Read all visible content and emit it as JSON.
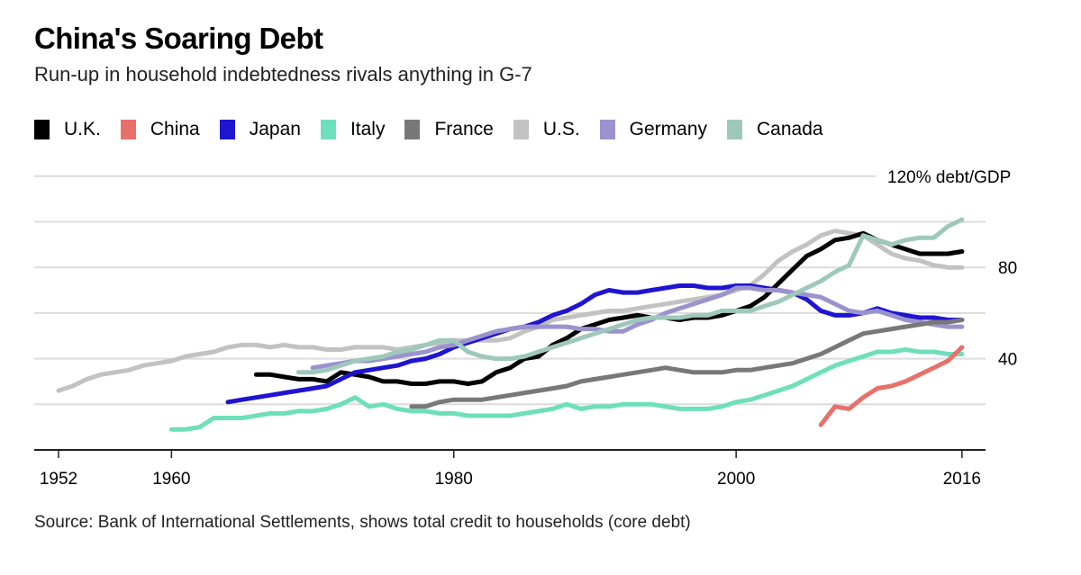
{
  "header": {
    "title": "China's Soaring Debt",
    "subtitle": "Run-up in household indebtedness rivals anything in G-7"
  },
  "footer": {
    "source": "Source: Bank of International Settlements, shows total credit to households (core debt)"
  },
  "chart_data": {
    "type": "line",
    "title": "China's Soaring Debt",
    "subtitle": "Run-up in household indebtedness rivals anything in G-7",
    "xlabel": "",
    "ylabel": "% debt/GDP",
    "xlim": [
      1952,
      2017
    ],
    "ylim": [
      0,
      120
    ],
    "x_ticks": [
      1952,
      1960,
      1980,
      2000,
      2016
    ],
    "y_ticks": [
      {
        "value": 120,
        "label": "120% debt/GDP"
      },
      {
        "value": 100,
        "label": ""
      },
      {
        "value": 80,
        "label": "80"
      },
      {
        "value": 60,
        "label": ""
      },
      {
        "value": 40,
        "label": "40"
      },
      {
        "value": 20,
        "label": ""
      }
    ],
    "grid": true,
    "legend_position": "top-left",
    "series": [
      {
        "name": "U.S.",
        "color": "#c2c2c2",
        "x": [
          1952,
          1953,
          1954,
          1955,
          1956,
          1957,
          1958,
          1959,
          1960,
          1961,
          1962,
          1963,
          1964,
          1965,
          1966,
          1967,
          1968,
          1969,
          1970,
          1971,
          1972,
          1973,
          1974,
          1975,
          1976,
          1977,
          1978,
          1979,
          1980,
          1981,
          1982,
          1983,
          1984,
          1985,
          1986,
          1987,
          1988,
          1989,
          1990,
          1991,
          1992,
          1993,
          1994,
          1995,
          1996,
          1997,
          1998,
          1999,
          2000,
          2001,
          2002,
          2003,
          2004,
          2005,
          2006,
          2007,
          2008,
          2009,
          2010,
          2011,
          2012,
          2013,
          2014,
          2015,
          2016
        ],
        "y": [
          26,
          28,
          31,
          33,
          34,
          35,
          37,
          38,
          39,
          41,
          42,
          43,
          45,
          46,
          46,
          45,
          46,
          45,
          45,
          44,
          44,
          45,
          45,
          45,
          44,
          45,
          46,
          47,
          48,
          48,
          48,
          48,
          49,
          52,
          54,
          57,
          58,
          59,
          60,
          61,
          61,
          62,
          63,
          64,
          65,
          66,
          67,
          68,
          70,
          72,
          77,
          83,
          87,
          90,
          94,
          96,
          95,
          94,
          90,
          86,
          84,
          83,
          81,
          80,
          80
        ]
      },
      {
        "name": "U.K.",
        "color": "#000000",
        "x": [
          1966,
          1967,
          1968,
          1969,
          1970,
          1971,
          1972,
          1973,
          1974,
          1975,
          1976,
          1977,
          1978,
          1979,
          1980,
          1981,
          1982,
          1983,
          1984,
          1985,
          1986,
          1987,
          1988,
          1989,
          1990,
          1991,
          1992,
          1993,
          1994,
          1995,
          1996,
          1997,
          1998,
          1999,
          2000,
          2001,
          2002,
          2003,
          2004,
          2005,
          2006,
          2007,
          2008,
          2009,
          2010,
          2011,
          2012,
          2013,
          2014,
          2015,
          2016
        ],
        "y": [
          33,
          33,
          32,
          31,
          31,
          30,
          34,
          33,
          32,
          30,
          30,
          29,
          29,
          30,
          30,
          29,
          30,
          34,
          36,
          40,
          41,
          46,
          49,
          53,
          55,
          57,
          58,
          59,
          58,
          58,
          57,
          58,
          58,
          59,
          61,
          63,
          67,
          73,
          79,
          85,
          88,
          92,
          93,
          95,
          92,
          90,
          88,
          86,
          86,
          86,
          87
        ]
      },
      {
        "name": "Japan",
        "color": "#1f14cf",
        "x": [
          1964,
          1965,
          1966,
          1967,
          1968,
          1969,
          1970,
          1971,
          1972,
          1973,
          1974,
          1975,
          1976,
          1977,
          1978,
          1979,
          1980,
          1981,
          1982,
          1983,
          1984,
          1985,
          1986,
          1987,
          1988,
          1989,
          1990,
          1991,
          1992,
          1993,
          1994,
          1995,
          1996,
          1997,
          1998,
          1999,
          2000,
          2001,
          2002,
          2003,
          2004,
          2005,
          2006,
          2007,
          2008,
          2009,
          2010,
          2011,
          2012,
          2013,
          2014,
          2015,
          2016
        ],
        "y": [
          21,
          22,
          23,
          24,
          25,
          26,
          27,
          28,
          31,
          34,
          35,
          36,
          37,
          39,
          40,
          42,
          45,
          47,
          49,
          51,
          53,
          54,
          56,
          59,
          61,
          64,
          68,
          70,
          69,
          69,
          70,
          71,
          72,
          72,
          71,
          71,
          72,
          72,
          71,
          70,
          69,
          66,
          61,
          59,
          59,
          60,
          62,
          60,
          59,
          58,
          58,
          57,
          57
        ]
      },
      {
        "name": "Germany",
        "color": "#9a93cd",
        "x": [
          1970,
          1971,
          1972,
          1973,
          1974,
          1975,
          1976,
          1977,
          1978,
          1979,
          1980,
          1981,
          1982,
          1983,
          1984,
          1985,
          1986,
          1987,
          1988,
          1989,
          1990,
          1991,
          1992,
          1993,
          1994,
          1995,
          1996,
          1997,
          1998,
          1999,
          2000,
          2001,
          2002,
          2003,
          2004,
          2005,
          2006,
          2007,
          2008,
          2009,
          2010,
          2011,
          2012,
          2013,
          2014,
          2015,
          2016
        ],
        "y": [
          36,
          37,
          38,
          39,
          39,
          40,
          41,
          42,
          43,
          45,
          46,
          48,
          50,
          52,
          53,
          54,
          54,
          54,
          54,
          53,
          53,
          52,
          52,
          55,
          57,
          60,
          62,
          64,
          66,
          68,
          71,
          71,
          70,
          70,
          69,
          68,
          67,
          64,
          61,
          60,
          61,
          59,
          57,
          56,
          55,
          54,
          54
        ]
      },
      {
        "name": "Canada",
        "color": "#9ec8bb",
        "x": [
          1969,
          1970,
          1971,
          1972,
          1973,
          1974,
          1975,
          1976,
          1977,
          1978,
          1979,
          1980,
          1981,
          1982,
          1983,
          1984,
          1985,
          1986,
          1987,
          1988,
          1989,
          1990,
          1991,
          1992,
          1993,
          1994,
          1995,
          1996,
          1997,
          1998,
          1999,
          2000,
          2001,
          2002,
          2003,
          2004,
          2005,
          2006,
          2007,
          2008,
          2009,
          2010,
          2011,
          2012,
          2013,
          2014,
          2015,
          2016
        ],
        "y": [
          34,
          34,
          35,
          37,
          39,
          40,
          41,
          43,
          44,
          46,
          48,
          48,
          43,
          41,
          40,
          40,
          41,
          43,
          45,
          47,
          49,
          51,
          53,
          55,
          57,
          58,
          58,
          58,
          59,
          59,
          61,
          61,
          61,
          63,
          65,
          68,
          71,
          74,
          78,
          81,
          94,
          92,
          90,
          92,
          93,
          93,
          98,
          101
        ]
      },
      {
        "name": "France",
        "color": "#787878",
        "x": [
          1977,
          1978,
          1979,
          1980,
          1981,
          1982,
          1983,
          1984,
          1985,
          1986,
          1987,
          1988,
          1989,
          1990,
          1991,
          1992,
          1993,
          1994,
          1995,
          1996,
          1997,
          1998,
          1999,
          2000,
          2001,
          2002,
          2003,
          2004,
          2005,
          2006,
          2007,
          2008,
          2009,
          2010,
          2011,
          2012,
          2013,
          2014,
          2015,
          2016
        ],
        "y": [
          19,
          19,
          21,
          22,
          22,
          22,
          23,
          24,
          25,
          26,
          27,
          28,
          30,
          31,
          32,
          33,
          34,
          35,
          36,
          35,
          34,
          34,
          34,
          35,
          35,
          36,
          37,
          38,
          40,
          42,
          45,
          48,
          51,
          52,
          53,
          54,
          55,
          56,
          56,
          57
        ]
      },
      {
        "name": "Italy",
        "color": "#6ddfba",
        "x": [
          1960,
          1961,
          1962,
          1963,
          1964,
          1965,
          1966,
          1967,
          1968,
          1969,
          1970,
          1971,
          1972,
          1973,
          1974,
          1975,
          1976,
          1977,
          1978,
          1979,
          1980,
          1981,
          1982,
          1983,
          1984,
          1985,
          1986,
          1987,
          1988,
          1989,
          1990,
          1991,
          1992,
          1993,
          1994,
          1995,
          1996,
          1997,
          1998,
          1999,
          2000,
          2001,
          2002,
          2003,
          2004,
          2005,
          2006,
          2007,
          2008,
          2009,
          2010,
          2011,
          2012,
          2013,
          2014,
          2015,
          2016
        ],
        "y": [
          9,
          9,
          10,
          14,
          14,
          14,
          15,
          16,
          16,
          17,
          17,
          18,
          20,
          23,
          19,
          20,
          18,
          17,
          17,
          16,
          16,
          15,
          15,
          15,
          15,
          16,
          17,
          18,
          20,
          18,
          19,
          19,
          20,
          20,
          20,
          19,
          18,
          18,
          18,
          19,
          21,
          22,
          24,
          26,
          28,
          31,
          34,
          37,
          39,
          41,
          43,
          43,
          44,
          43,
          43,
          42,
          42
        ]
      },
      {
        "name": "China",
        "color": "#e8706a",
        "x": [
          2006,
          2007,
          2008,
          2009,
          2010,
          2011,
          2012,
          2013,
          2014,
          2015,
          2016
        ],
        "y": [
          11,
          19,
          18,
          23,
          27,
          28,
          30,
          33,
          36,
          39,
          45
        ]
      }
    ]
  }
}
